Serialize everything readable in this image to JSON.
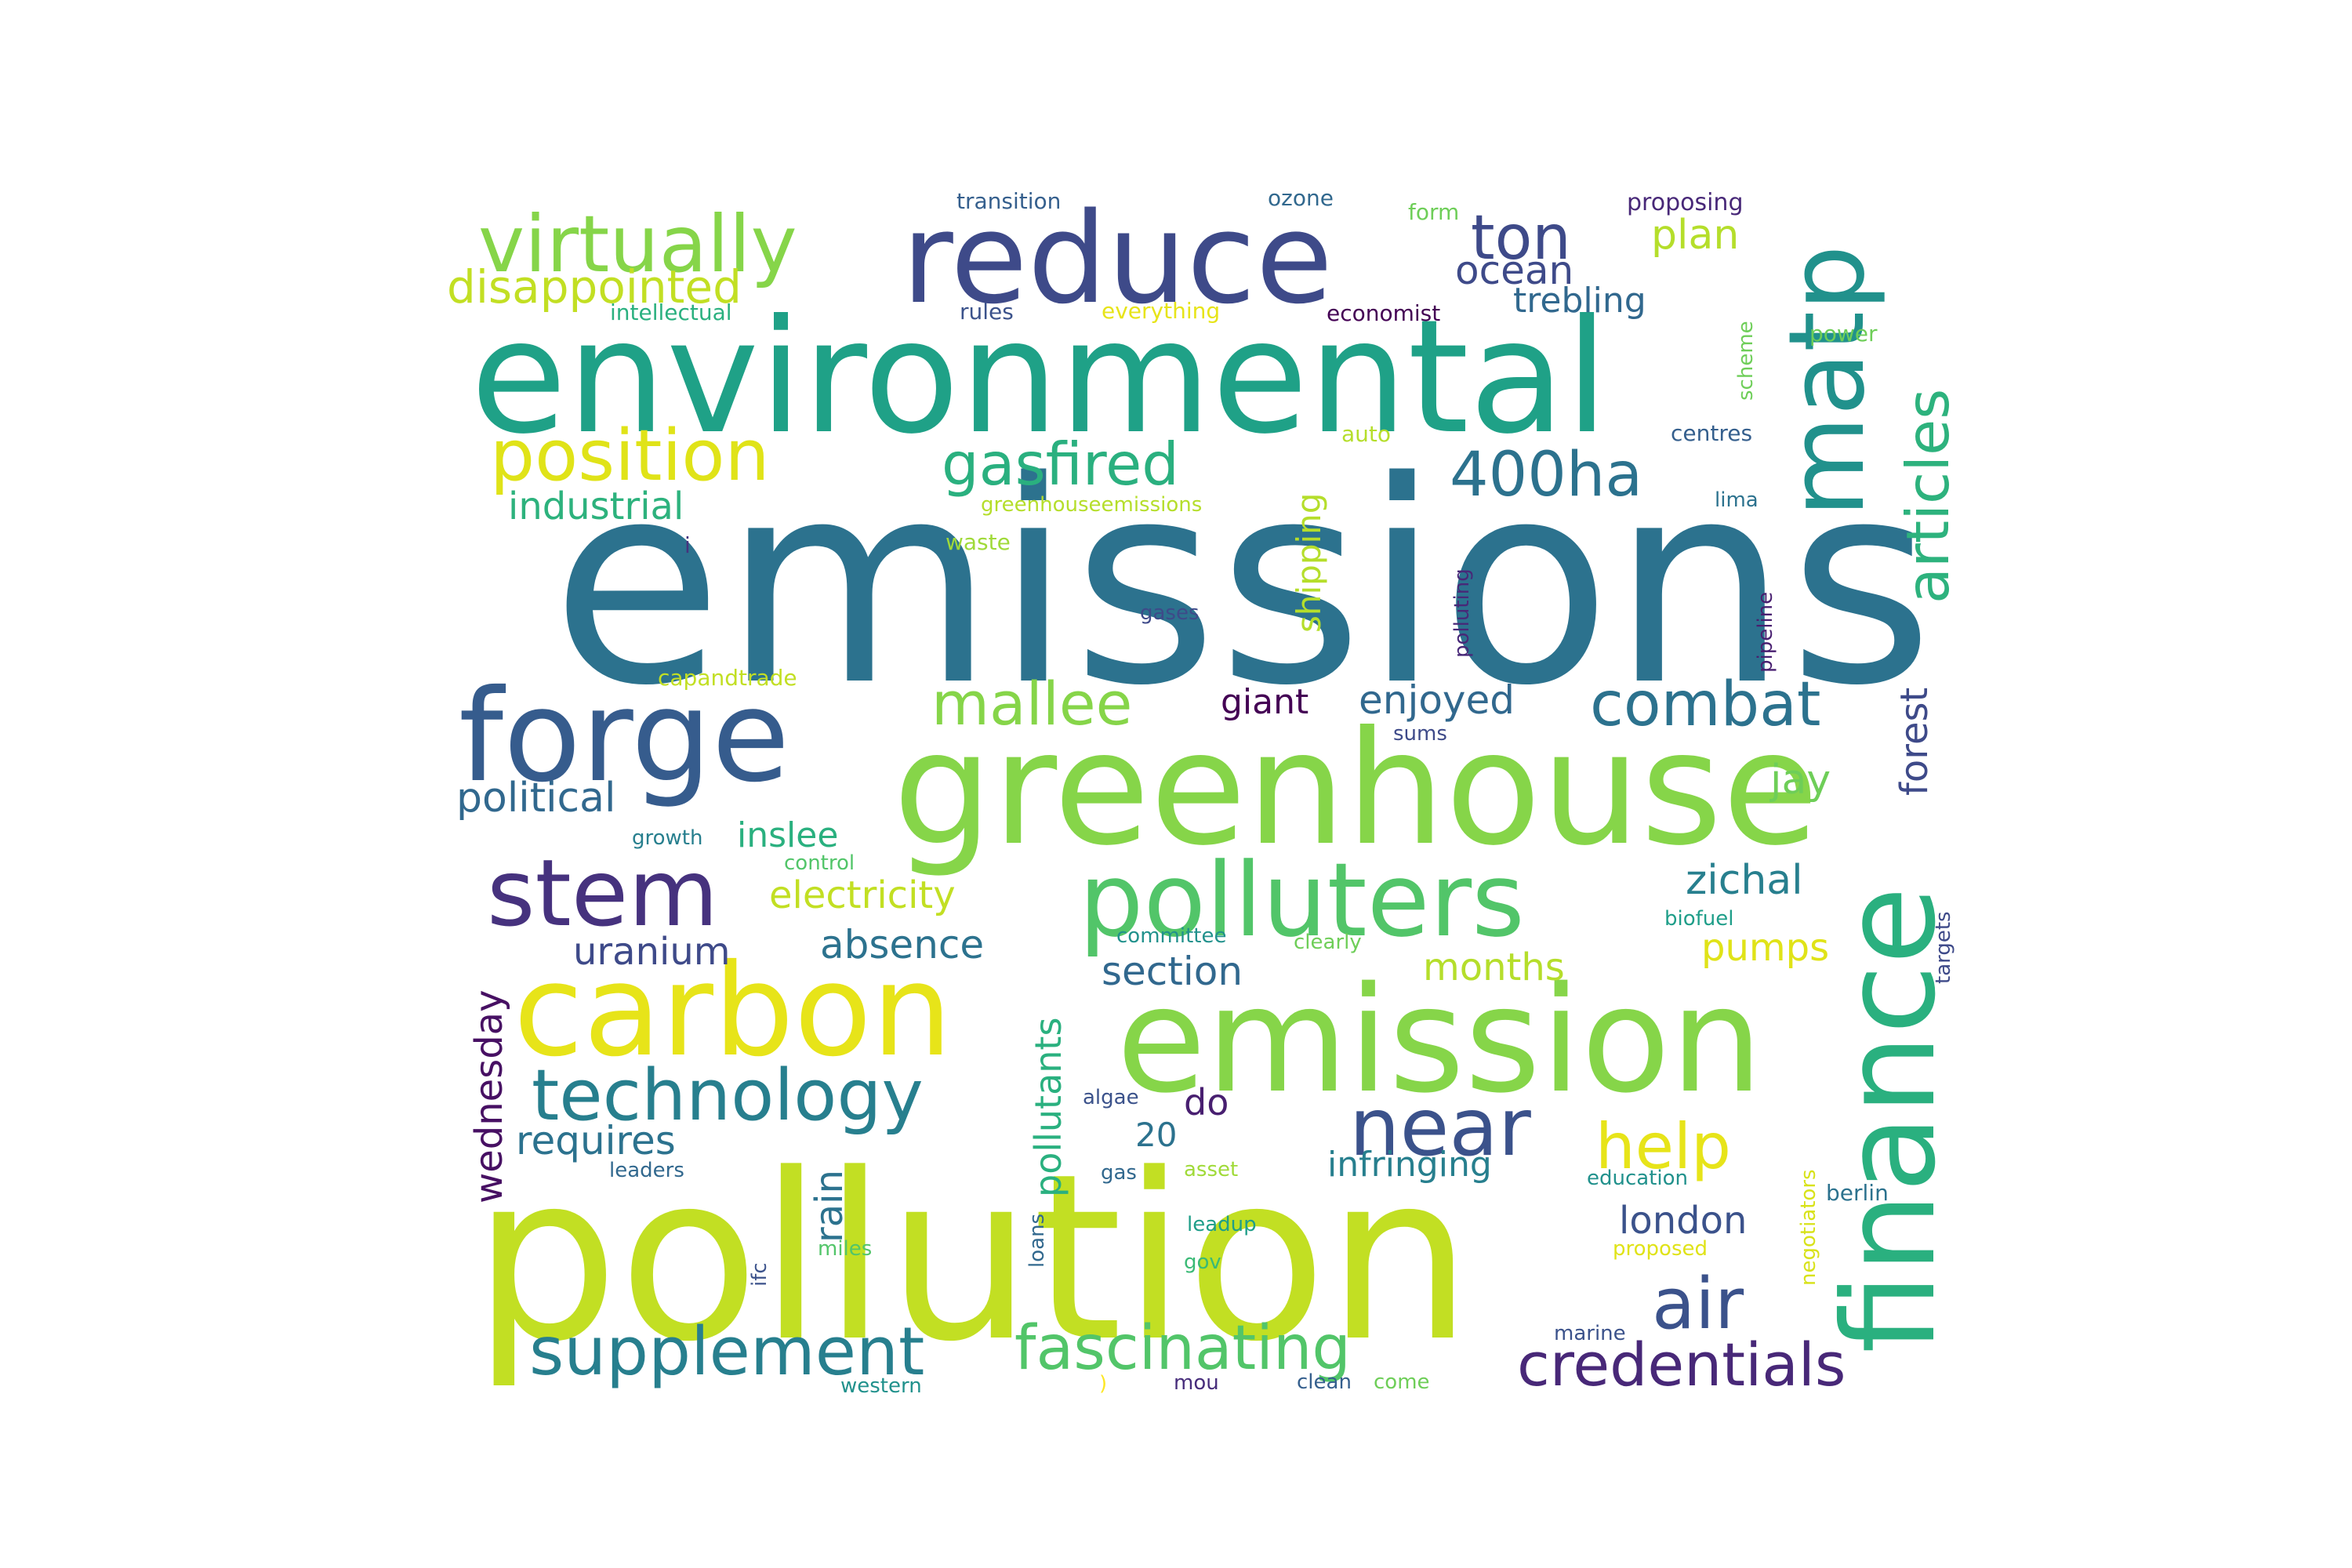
{
  "words": [
    {
      "text": "emissions",
      "color": "#2c728e"
    },
    {
      "text": "pollution",
      "color": "#c2df23"
    },
    {
      "text": "environmental",
      "color": "#1fa187"
    },
    {
      "text": "greenhouse",
      "color": "#86d549"
    },
    {
      "text": "emission",
      "color": "#86d549"
    },
    {
      "text": "finance",
      "color": "#2ab07f"
    },
    {
      "text": "carbon",
      "color": "#e7e419"
    },
    {
      "text": "reduce",
      "color": "#3e4a89"
    },
    {
      "text": "forge",
      "color": "#365c8d"
    },
    {
      "text": "matp",
      "color": "#21918c"
    },
    {
      "text": "polluters",
      "color": "#52c569"
    },
    {
      "text": "stem",
      "color": "#46327e"
    },
    {
      "text": "virtually",
      "color": "#86d549"
    },
    {
      "text": "technology",
      "color": "#277f8e"
    },
    {
      "text": "near",
      "color": "#3b528b"
    },
    {
      "text": "position",
      "color": "#e0e318"
    },
    {
      "text": "articles",
      "color": "#2db27d"
    },
    {
      "text": "supplement",
      "color": "#277f8e"
    },
    {
      "text": "fascinating",
      "color": "#52c569"
    },
    {
      "text": "credentials",
      "color": "#482878"
    },
    {
      "text": "gasfired",
      "color": "#2ab07f"
    },
    {
      "text": "400ha",
      "color": "#2c728e"
    },
    {
      "text": "ton",
      "color": "#3e4a89"
    },
    {
      "text": "mallee",
      "color": "#86d549"
    },
    {
      "text": "combat",
      "color": "#2c728e"
    },
    {
      "text": "air",
      "color": "#3b528b"
    },
    {
      "text": "help",
      "color": "#e7e419"
    },
    {
      "text": "disappointed",
      "color": "#c2df23"
    },
    {
      "text": "ocean",
      "color": "#3e4a89"
    },
    {
      "text": "industrial",
      "color": "#2db27d"
    },
    {
      "text": "plan",
      "color": "#b5de2b"
    },
    {
      "text": "trebling",
      "color": "#31688e"
    },
    {
      "text": "enjoyed",
      "color": "#31688e"
    },
    {
      "text": "giant",
      "color": "#440154"
    },
    {
      "text": "political",
      "color": "#31688e"
    },
    {
      "text": "inslee",
      "color": "#2ab07f"
    },
    {
      "text": "electricity",
      "color": "#c2df23"
    },
    {
      "text": "zichal",
      "color": "#277f8e"
    },
    {
      "text": "jay",
      "color": "#6ece58"
    },
    {
      "text": "forest",
      "color": "#3e4a89"
    },
    {
      "text": "uranium",
      "color": "#3e4a89"
    },
    {
      "text": "absence",
      "color": "#2c728e"
    },
    {
      "text": "section",
      "color": "#31688e"
    },
    {
      "text": "months",
      "color": "#b5de2b"
    },
    {
      "text": "pumps",
      "color": "#e0e318"
    },
    {
      "text": "pollutants",
      "color": "#2ab07f"
    },
    {
      "text": "shipping",
      "color": "#b5de2b"
    },
    {
      "text": "wednesday",
      "color": "#471063"
    },
    {
      "text": "requires",
      "color": "#2c728e"
    },
    {
      "text": "rain",
      "color": "#2c728e"
    },
    {
      "text": "20",
      "color": "#2c728e"
    },
    {
      "text": "do",
      "color": "#481f70"
    },
    {
      "text": "infringing",
      "color": "#277f8e"
    },
    {
      "text": "london",
      "color": "#3b528b"
    },
    {
      "text": "transition",
      "color": "#355f8d"
    },
    {
      "text": "ozone",
      "color": "#31688e"
    },
    {
      "text": "form",
      "color": "#6ece58"
    },
    {
      "text": "proposing",
      "color": "#482878"
    },
    {
      "text": "intellectual",
      "color": "#2ab07f"
    },
    {
      "text": "rules",
      "color": "#3b528b"
    },
    {
      "text": "everything",
      "color": "#e7e419"
    },
    {
      "text": "economist",
      "color": "#440154"
    },
    {
      "text": "scheme",
      "color": "#6ece58"
    },
    {
      "text": "power",
      "color": "#6ece58"
    },
    {
      "text": "auto",
      "color": "#b5de2b"
    },
    {
      "text": "centres",
      "color": "#355f8d"
    },
    {
      "text": "greenhouseemissions",
      "color": "#b5de2b"
    },
    {
      "text": "lima",
      "color": "#2c728e"
    },
    {
      "text": "i",
      "color": "#46327e"
    },
    {
      "text": "waste",
      "color": "#a0da39"
    },
    {
      "text": "polluting",
      "color": "#482878"
    },
    {
      "text": "pipeline",
      "color": "#481f70"
    },
    {
      "text": "gases",
      "color": "#3e4a89"
    },
    {
      "text": "capandtrade",
      "color": "#c2df23"
    },
    {
      "text": "sums",
      "color": "#3e4a89"
    },
    {
      "text": "growth",
      "color": "#277f8e"
    },
    {
      "text": "control",
      "color": "#52c569"
    },
    {
      "text": "biofuel",
      "color": "#1f9e89"
    },
    {
      "text": "targets",
      "color": "#3e4a89"
    },
    {
      "text": "committee",
      "color": "#21918c"
    },
    {
      "text": "clearly",
      "color": "#6ece58"
    },
    {
      "text": "algae",
      "color": "#3b528b"
    },
    {
      "text": "leaders",
      "color": "#31688e"
    },
    {
      "text": "gas",
      "color": "#31688e"
    },
    {
      "text": "asset",
      "color": "#a0da39"
    },
    {
      "text": "education",
      "color": "#21918c"
    },
    {
      "text": "negotiators",
      "color": "#d8e219"
    },
    {
      "text": "berlin",
      "color": "#2c728e"
    },
    {
      "text": "leadup",
      "color": "#1f9e89"
    },
    {
      "text": "ifc",
      "color": "#3b528b"
    },
    {
      "text": "miles",
      "color": "#52c569"
    },
    {
      "text": "loans",
      "color": "#31688e"
    },
    {
      "text": "gov",
      "color": "#3aba76"
    },
    {
      "text": "proposed",
      "color": "#e0e318"
    },
    {
      "text": "marine",
      "color": "#3b528b"
    },
    {
      "text": "western",
      "color": "#21918c"
    },
    {
      "text": ")",
      "color": "#fde725"
    },
    {
      "text": "mou",
      "color": "#472d7b"
    },
    {
      "text": "clean",
      "color": "#355f8d"
    },
    {
      "text": "come",
      "color": "#6ece58"
    }
  ]
}
